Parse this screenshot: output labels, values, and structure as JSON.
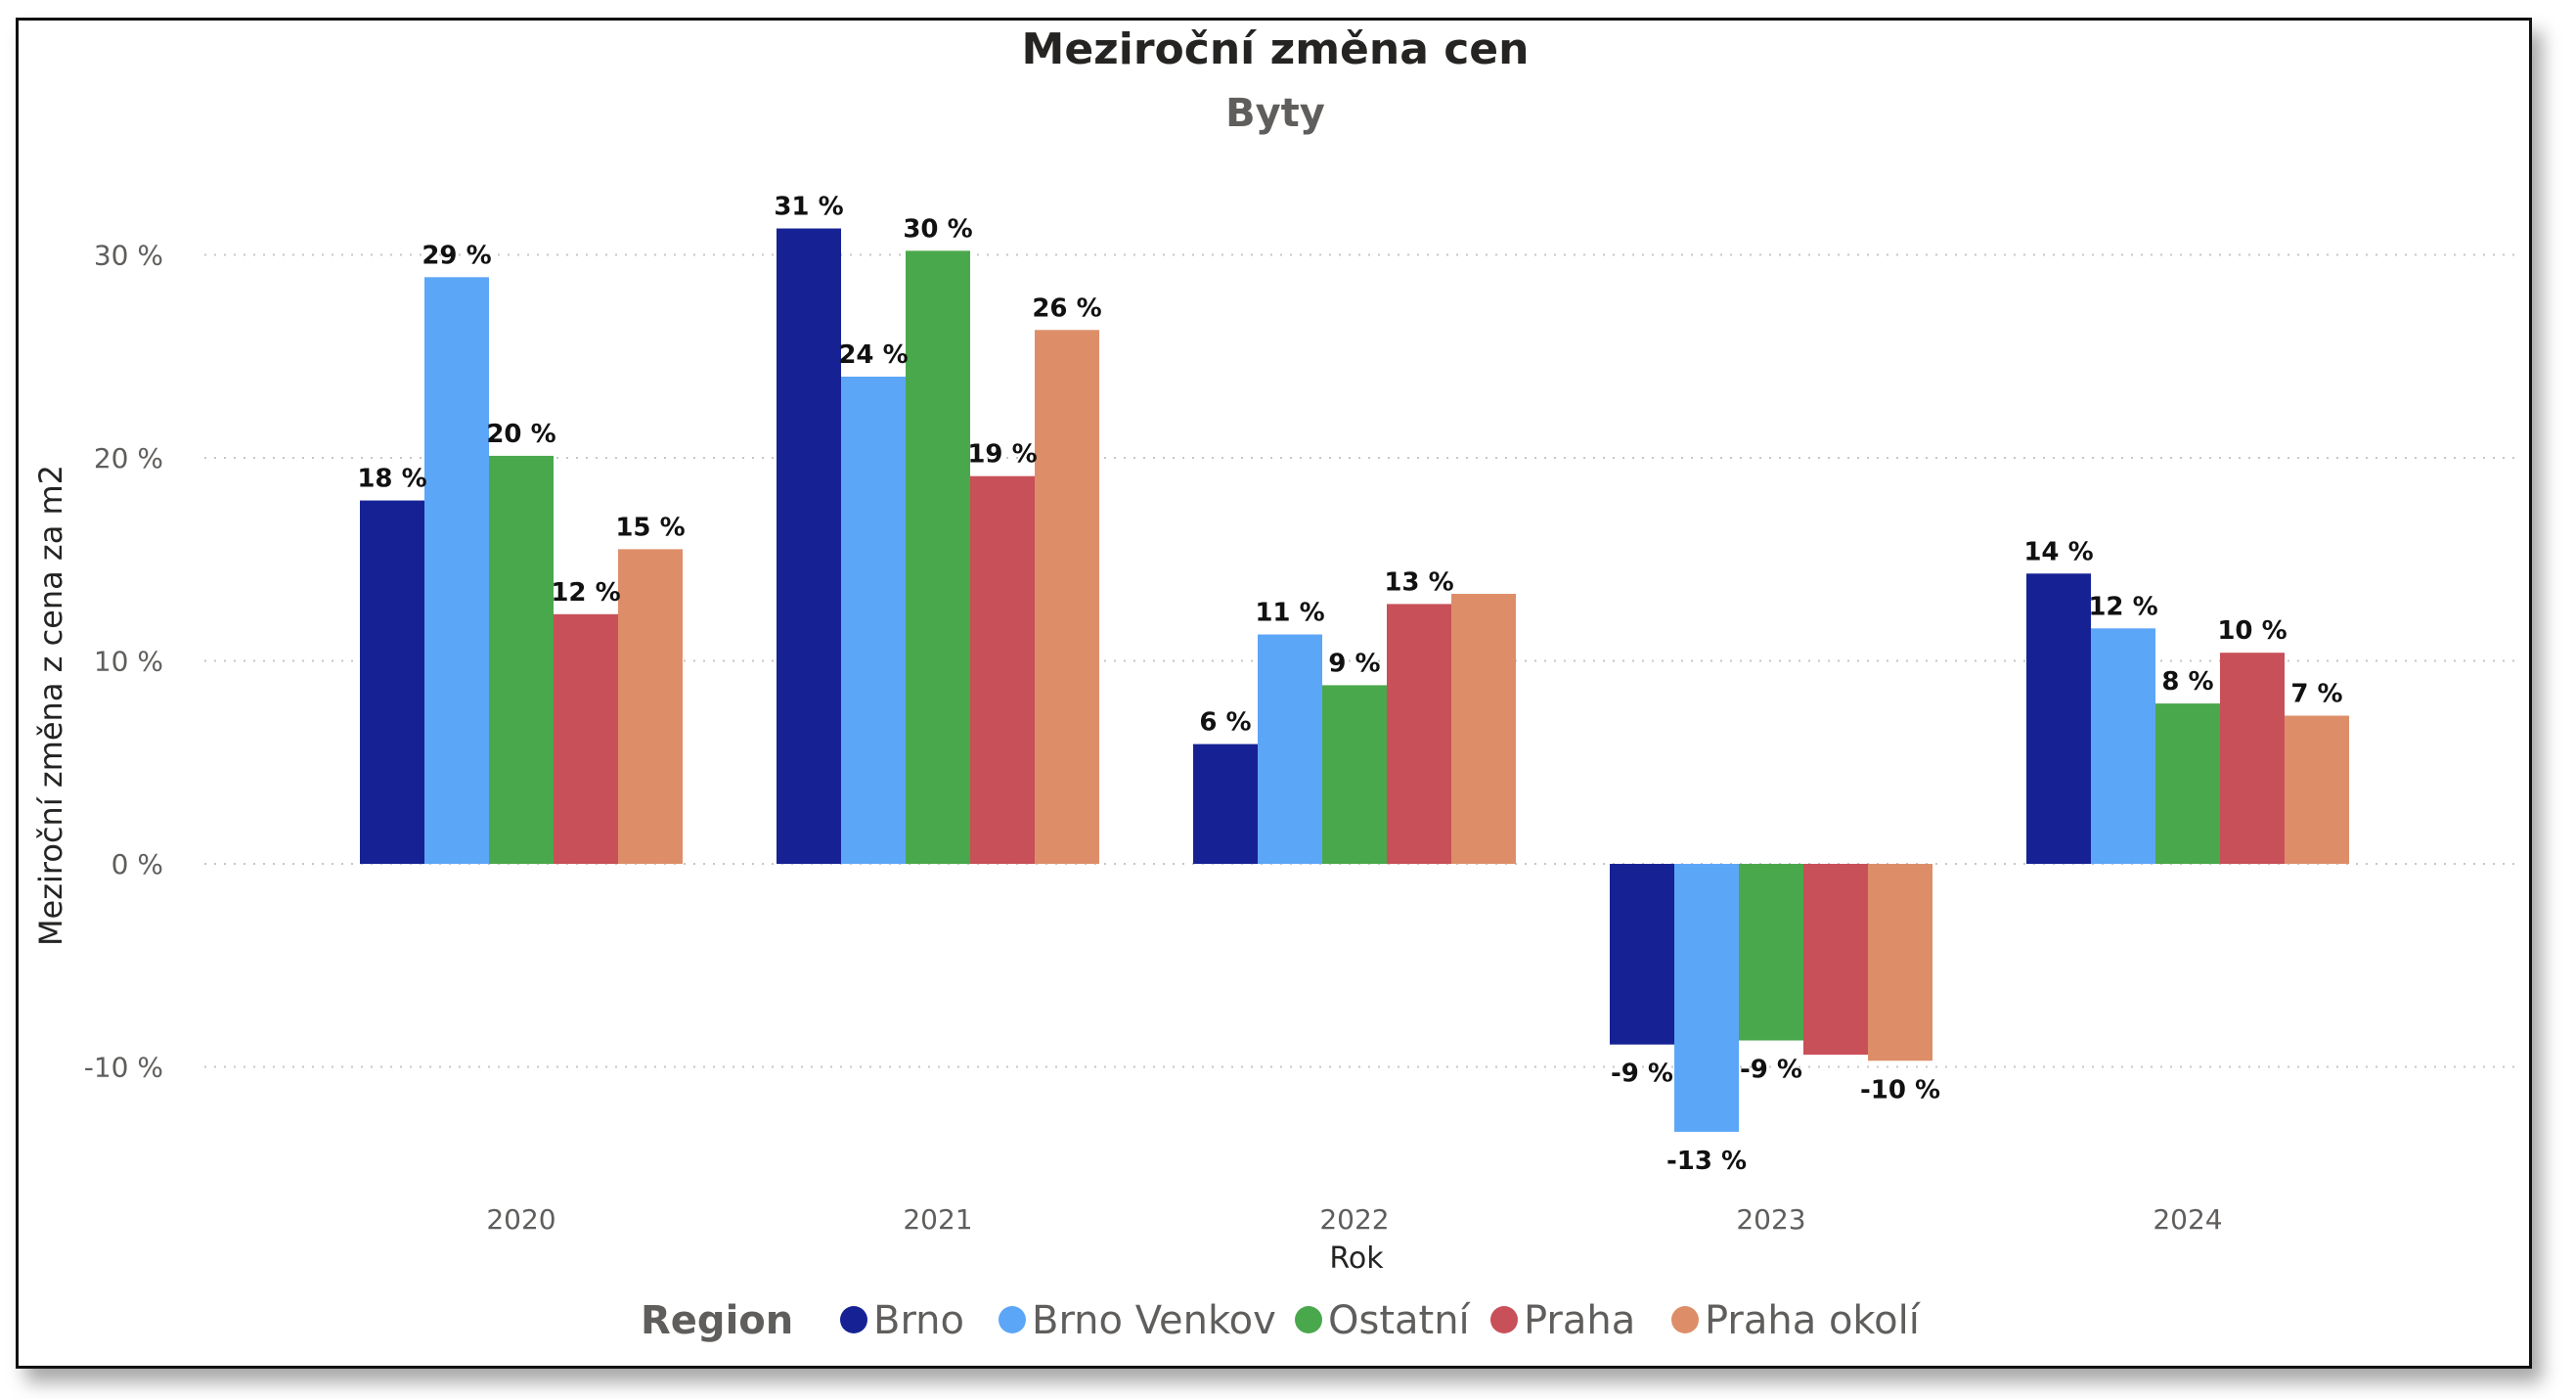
{
  "chart_data": {
    "type": "bar",
    "title": "Meziroční změna cen",
    "subtitle": "Byty",
    "xlabel": "Rok",
    "ylabel": "Meziroční změna z cena za m2",
    "categories": [
      "2020",
      "2021",
      "2022",
      "2023",
      "2024"
    ],
    "y_ticks": [
      "30 %",
      "20 %",
      "10 %",
      "0 %",
      "-10 %"
    ],
    "y_tick_values": [
      30,
      20,
      10,
      0,
      -10
    ],
    "ylim": [
      -15,
      35
    ],
    "grid": "horizontal dotted",
    "legend_title": "Region",
    "legend_position": "bottom",
    "series": [
      {
        "name": "Brno",
        "color": "#162294",
        "values": [
          17.9,
          31.3,
          5.9,
          -8.9,
          14.3
        ],
        "labels": [
          "18 %",
          "31 %",
          "6 %",
          "-9 %",
          "14 %"
        ]
      },
      {
        "name": "Brno Venkov",
        "color": "#5ca6f8",
        "values": [
          28.9,
          24.0,
          11.3,
          -13.2,
          11.6
        ],
        "labels": [
          "29 %",
          "24 %",
          "11 %",
          "-13 %",
          "12 %"
        ]
      },
      {
        "name": "Ostatní",
        "color": "#4aa84c",
        "values": [
          20.1,
          30.2,
          8.8,
          -8.7,
          7.9
        ],
        "labels": [
          "20 %",
          "30 %",
          "9 %",
          "-9 %",
          "8 %"
        ]
      },
      {
        "name": "Praha",
        "color": "#c85058",
        "values": [
          12.3,
          19.1,
          12.8,
          -9.4,
          10.4
        ],
        "labels": [
          "12 %",
          "19 %",
          "13 %",
          "",
          "10 %"
        ]
      },
      {
        "name": "Praha okolí",
        "color": "#dd8e69",
        "values": [
          15.5,
          26.3,
          13.3,
          -9.7,
          7.3
        ],
        "labels": [
          "15 %",
          "26 %",
          "",
          "-10 %",
          "7 %"
        ]
      }
    ]
  }
}
